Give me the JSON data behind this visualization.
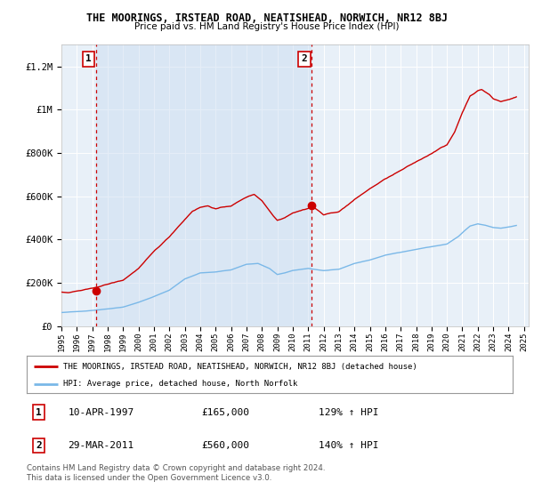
{
  "title": "THE MOORINGS, IRSTEAD ROAD, NEATISHEAD, NORWICH, NR12 8BJ",
  "subtitle": "Price paid vs. HM Land Registry's House Price Index (HPI)",
  "legend_line1": "THE MOORINGS, IRSTEAD ROAD, NEATISHEAD, NORWICH, NR12 8BJ (detached house)",
  "legend_line2": "HPI: Average price, detached house, North Norfolk",
  "footer1": "Contains HM Land Registry data © Crown copyright and database right 2024.",
  "footer2": "This data is licensed under the Open Government Licence v3.0.",
  "transaction1_date": "10-APR-1997",
  "transaction1_price": "£165,000",
  "transaction1_hpi": "129% ↑ HPI",
  "transaction1_year": 1997.27,
  "transaction1_value": 165000,
  "transaction2_date": "29-MAR-2011",
  "transaction2_price": "£560,000",
  "transaction2_hpi": "140% ↑ HPI",
  "transaction2_year": 2011.24,
  "transaction2_value": 560000,
  "hpi_color": "#7ab8e8",
  "price_color": "#cc0000",
  "shade_color": "#d8e8f5",
  "background_color": "#e8f0f8",
  "ylim_max": 1300000,
  "ylabel_ticks": [
    0,
    200000,
    400000,
    600000,
    800000,
    1000000,
    1200000
  ],
  "ylabel_labels": [
    "£0",
    "£200K",
    "£400K",
    "£600K",
    "£800K",
    "£1M",
    "£1.2M"
  ],
  "xmin": 1995.0,
  "xmax": 2025.3
}
